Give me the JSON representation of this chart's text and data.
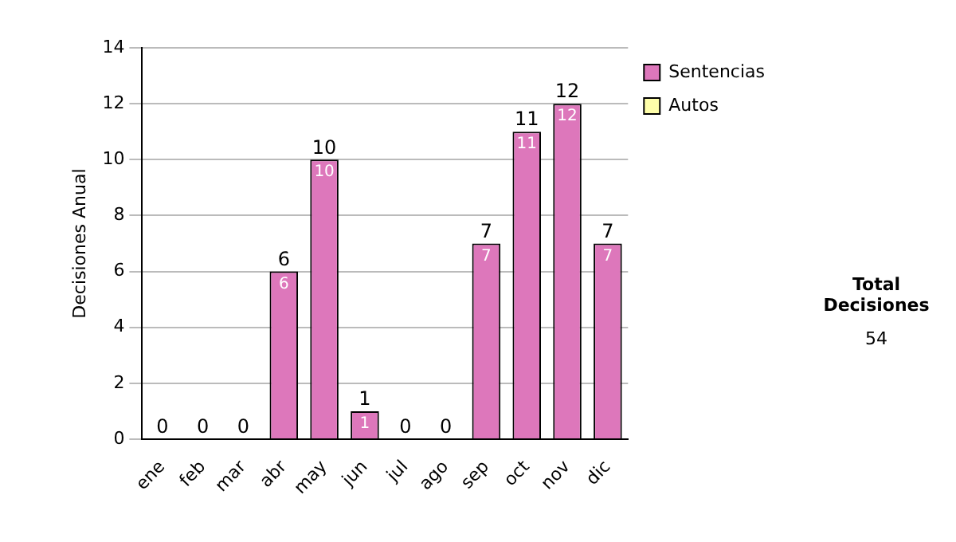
{
  "chart_data": {
    "type": "bar",
    "ylabel": "Decisiones Anual",
    "categories": [
      "ene",
      "feb",
      "mar",
      "abr",
      "may",
      "jun",
      "jul",
      "ago",
      "sep",
      "oct",
      "nov",
      "dic"
    ],
    "stacked": true,
    "series": [
      {
        "name": "Sentencias",
        "color": "#dd77bb",
        "values": [
          0,
          0,
          0,
          6,
          10,
          1,
          0,
          0,
          7,
          11,
          12,
          7
        ],
        "value_labels": [
          null,
          null,
          null,
          "6",
          "10",
          "1",
          null,
          null,
          "7",
          "11",
          "12",
          "7"
        ]
      },
      {
        "name": "Autos",
        "color": "#ffffaa",
        "values": [
          0,
          0,
          0,
          0,
          0,
          0,
          0,
          0,
          0,
          0,
          0,
          0
        ]
      }
    ],
    "totals": [
      "0",
      "0",
      "0",
      "6",
      "10",
      "1",
      "0",
      "0",
      "7",
      "11",
      "12",
      "7"
    ],
    "ylim": [
      0,
      14
    ],
    "yticks": [
      0,
      2,
      4,
      6,
      8,
      10,
      12,
      14
    ],
    "grid": "y",
    "legend": "right",
    "annotations": [
      "Total Decisiones",
      "54"
    ]
  }
}
